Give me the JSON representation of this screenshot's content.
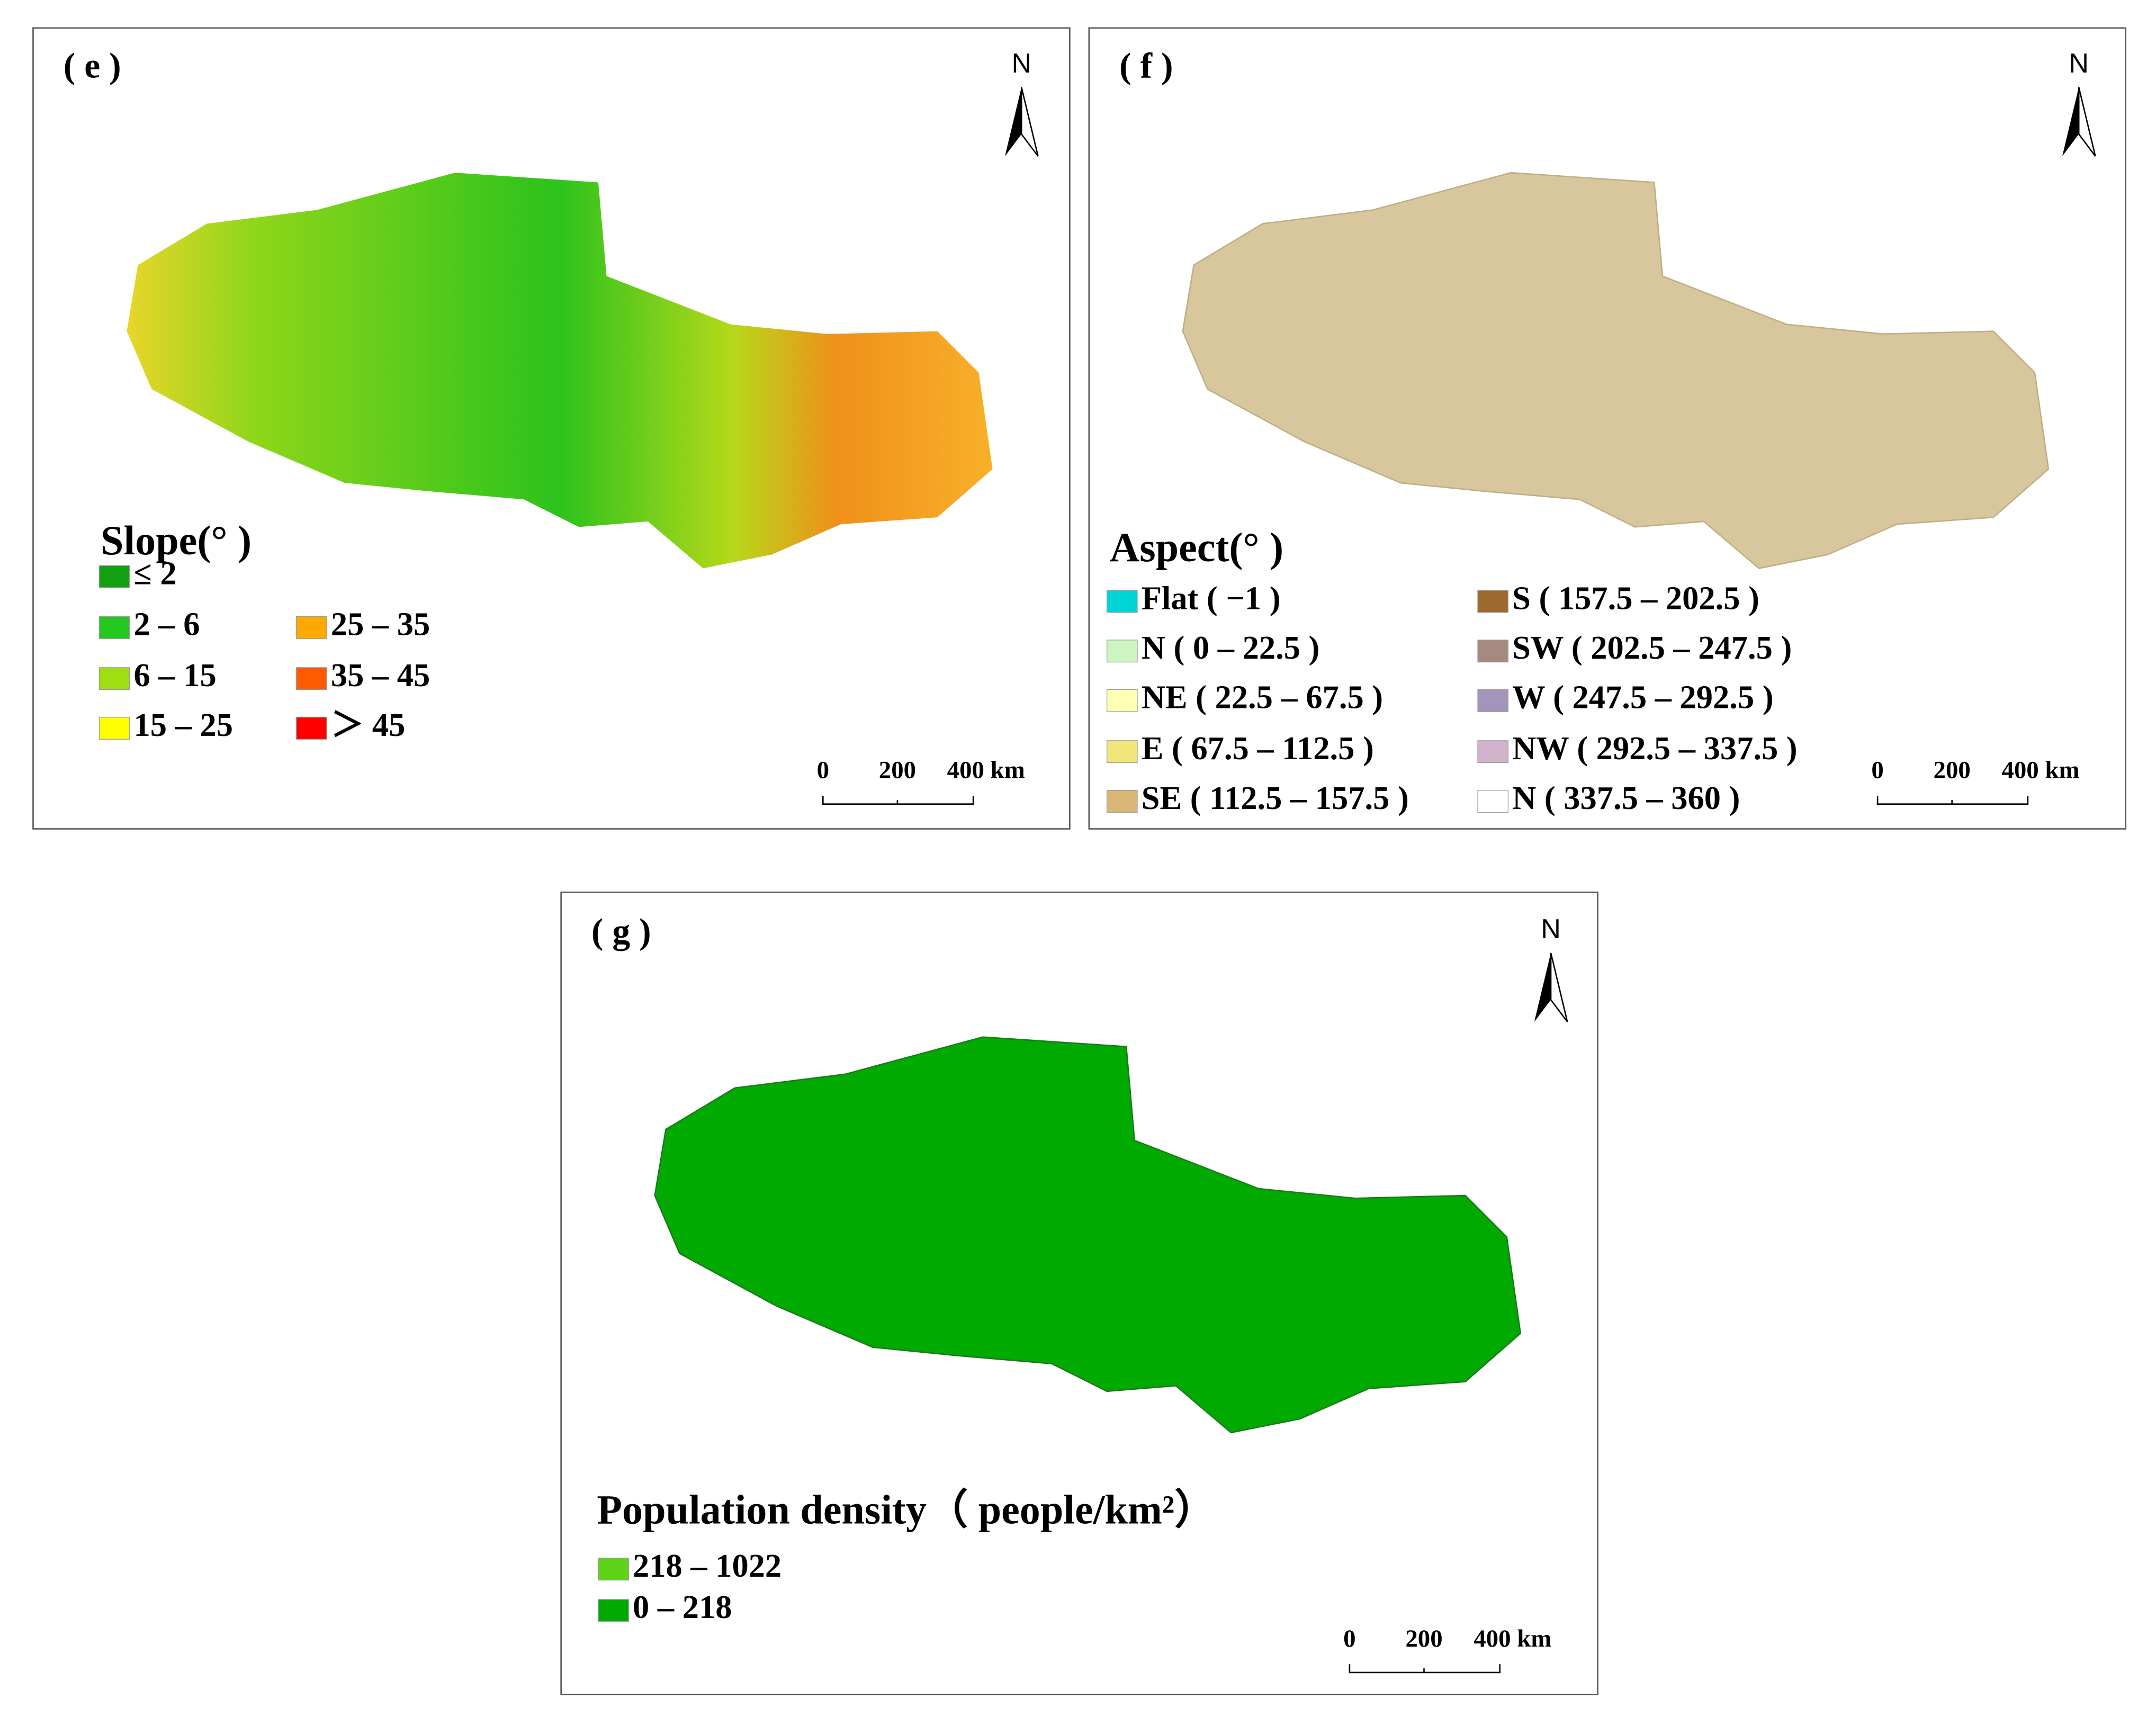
{
  "panels": [
    {
      "label": "( e )",
      "north": "N",
      "legend_title": "Slope(° )",
      "legend": [
        {
          "label": "≤ 2",
          "color": "#12a012"
        },
        {
          "label": "2 – 6",
          "color": "#22c81e"
        },
        {
          "label": "6 – 15",
          "color": "#9ede12"
        },
        {
          "label": "15 – 25",
          "color": "#ffff00"
        },
        {
          "label": "25 – 35",
          "color": "#ffaa00"
        },
        {
          "label": "35 – 45",
          "color": "#ff5a00"
        },
        {
          "label": "＞ 45",
          "color": "#ff0000"
        }
      ],
      "scale": [
        "0",
        "200",
        "400 km"
      ]
    },
    {
      "label": "( f )",
      "north": "N",
      "legend_title": "Aspect(° )",
      "legend": [
        {
          "label": "Flat ( −1 )",
          "color": "#00d5d5"
        },
        {
          "label": "N ( 0 – 22.5 )",
          "color": "#ccf5c2"
        },
        {
          "label": "NE ( 22.5 – 67.5 )",
          "color": "#ffffb3"
        },
        {
          "label": "E ( 67.5 – 112.5 )",
          "color": "#f2e67a"
        },
        {
          "label": "SE ( 112.5 – 157.5 )",
          "color": "#d9b877"
        },
        {
          "label": "S ( 157.5 – 202.5 )",
          "color": "#9c6a2e"
        },
        {
          "label": "SW ( 202.5 – 247.5 )",
          "color": "#a68a80"
        },
        {
          "label": "W ( 247.5 – 292.5 )",
          "color": "#a494bc"
        },
        {
          "label": "NW ( 292.5 – 337.5 )",
          "color": "#d2b3cc"
        },
        {
          "label": "N ( 337.5 – 360 )",
          "color": "#ffffff"
        }
      ],
      "scale": [
        "0",
        "200",
        "400 km"
      ]
    },
    {
      "label": "( g )",
      "north": "N",
      "legend_title": "Population density（ people/km²）",
      "legend": [
        {
          "label": "218 – 1022",
          "color": "#5fd31a"
        },
        {
          "label": "0 – 218",
          "color": "#00aa00"
        }
      ],
      "scale": [
        "0",
        "200",
        "400 km"
      ]
    }
  ]
}
